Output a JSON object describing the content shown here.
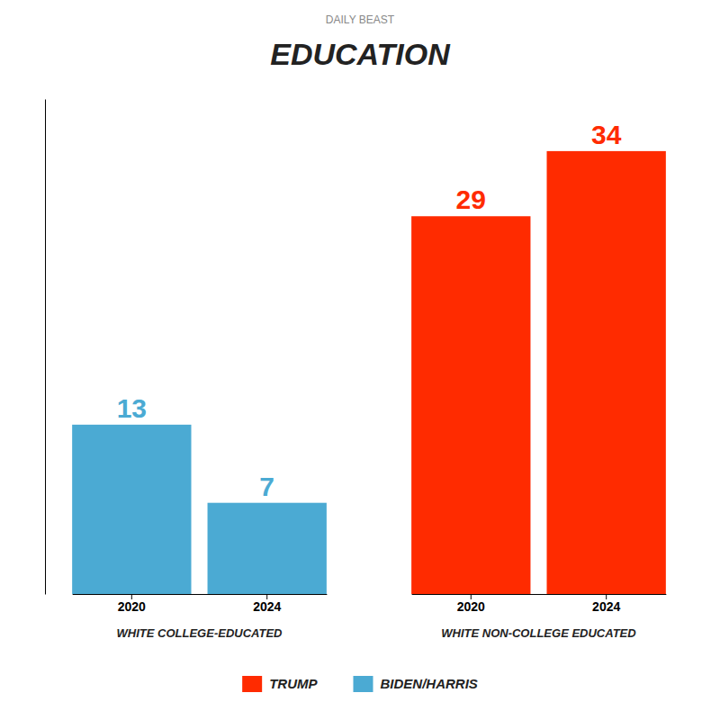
{
  "chart_data": {
    "type": "bar",
    "title": "EDUCATION",
    "annotations": [
      "DAILY BEAST"
    ],
    "categories": [
      "2020",
      "2024",
      "2020",
      "2024"
    ],
    "category_groups": [
      "WHITE COLLEGE-EDUCATED",
      "WHITE COLLEGE-EDUCATED",
      "WHITE NON-COLLEGE EDUCATED",
      "WHITE NON-COLLEGE EDUCATED"
    ],
    "series": [
      {
        "name": "TRUMP",
        "color": "#FF2B00",
        "values": [
          null,
          null,
          29,
          34
        ]
      },
      {
        "name": "BIDEN/HARRIS",
        "color": "#4BAAD3",
        "values": [
          13,
          7,
          null,
          null
        ]
      }
    ],
    "ylim": [
      0,
      38
    ],
    "data_labels": true,
    "tick_labels": "x",
    "legend": "bottom"
  }
}
